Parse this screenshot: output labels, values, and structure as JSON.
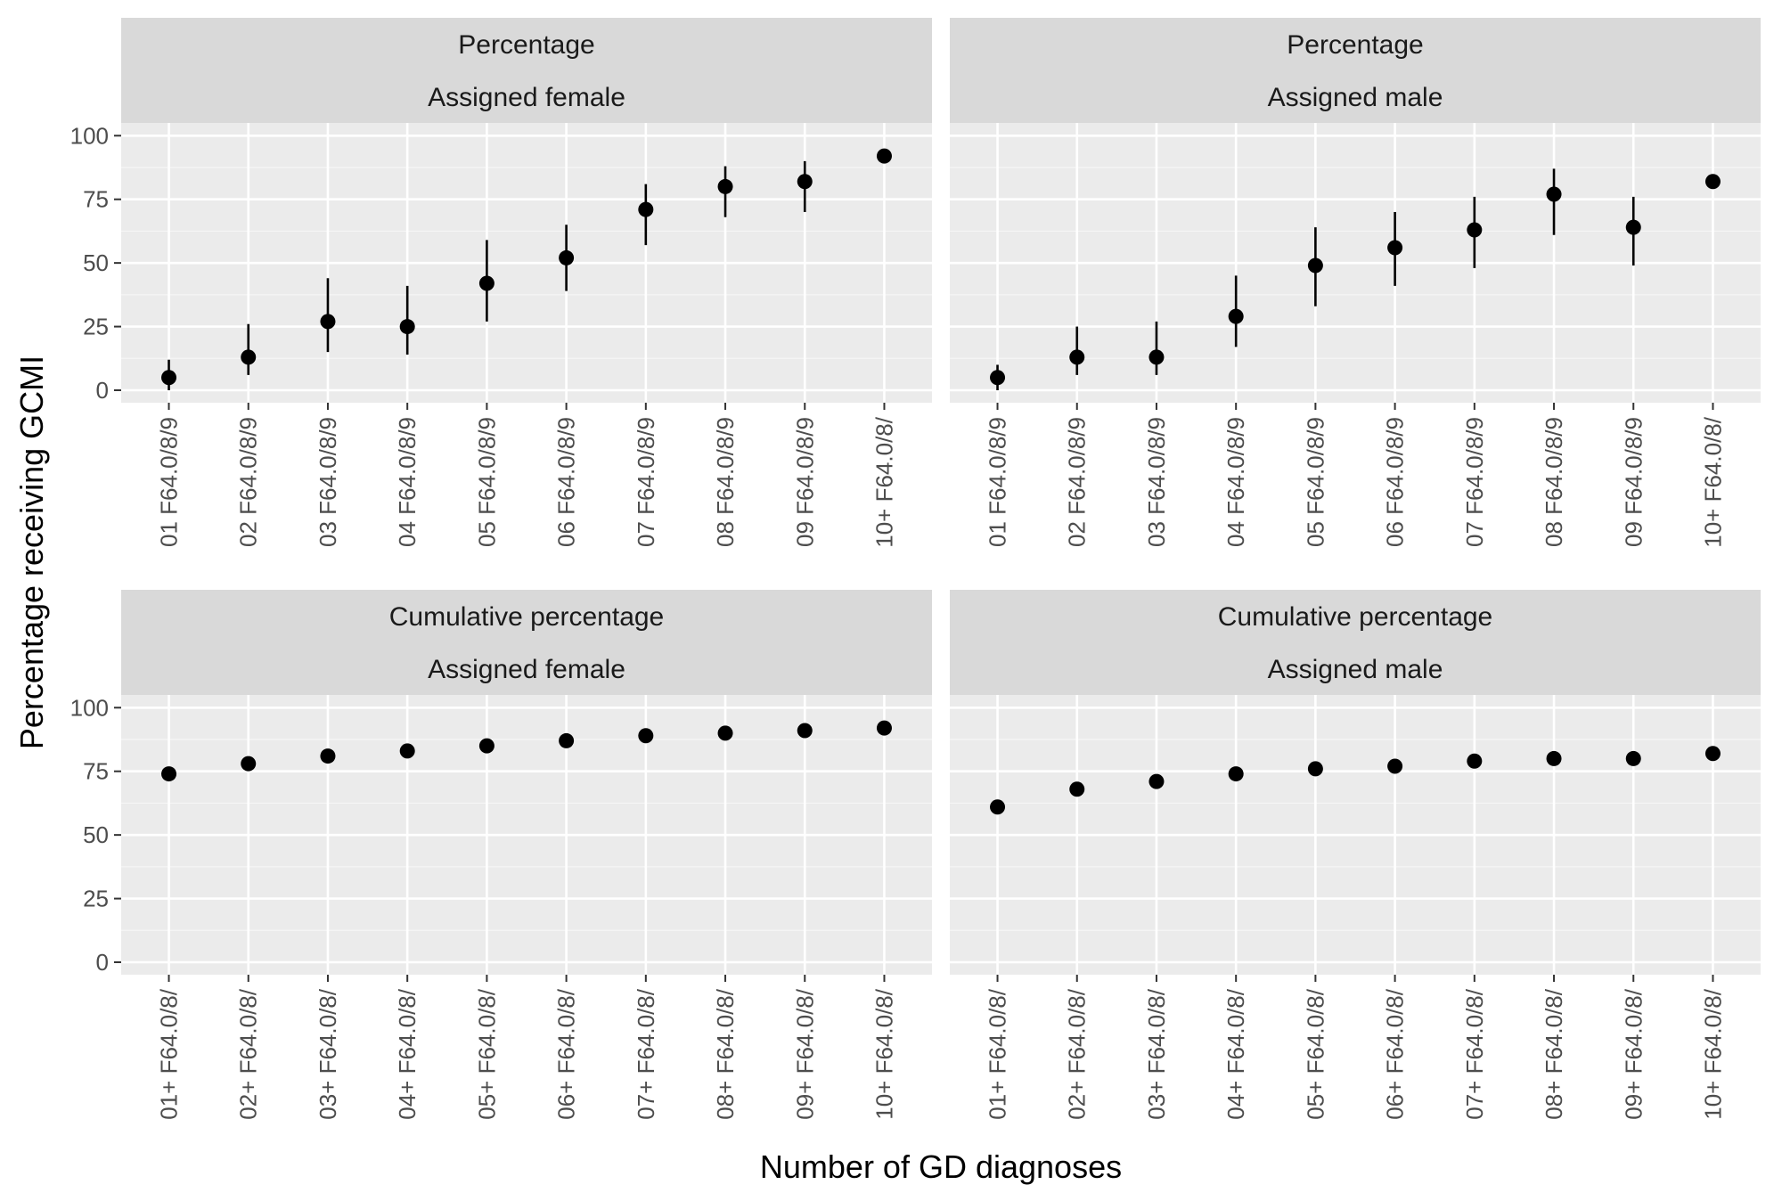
{
  "chart_data": {
    "type": "scatter",
    "xlabel": "Number of GD diagnoses",
    "ylabel": "Percentage receiving GCMI",
    "y_ticks": [
      0,
      25,
      50,
      75,
      100
    ],
    "ylim": [
      0,
      105
    ],
    "grid": true,
    "panels": [
      {
        "strip_top": "Percentage",
        "strip_bottom": "Assigned female",
        "categories": [
          "01 F64.0/8/9",
          "02 F64.0/8/9",
          "03 F64.0/8/9",
          "04 F64.0/8/9",
          "05 F64.0/8/9",
          "06 F64.0/8/9",
          "07 F64.0/8/9",
          "08 F64.0/8/9",
          "09 F64.0/8/9",
          "10+ F64.0/8/"
        ],
        "values": [
          5,
          13,
          27,
          25,
          42,
          52,
          71,
          80,
          82,
          92
        ],
        "lower": [
          0,
          6,
          15,
          14,
          27,
          39,
          57,
          68,
          70,
          null
        ],
        "upper": [
          12,
          26,
          44,
          41,
          59,
          65,
          81,
          88,
          90,
          null
        ]
      },
      {
        "strip_top": "Percentage",
        "strip_bottom": "Assigned male",
        "categories": [
          "01 F64.0/8/9",
          "02 F64.0/8/9",
          "03 F64.0/8/9",
          "04 F64.0/8/9",
          "05 F64.0/8/9",
          "06 F64.0/8/9",
          "07 F64.0/8/9",
          "08 F64.0/8/9",
          "09 F64.0/8/9",
          "10+ F64.0/8/"
        ],
        "values": [
          5,
          13,
          13,
          29,
          49,
          56,
          63,
          77,
          64,
          82
        ],
        "lower": [
          0,
          6,
          6,
          17,
          33,
          41,
          48,
          61,
          49,
          null
        ],
        "upper": [
          10,
          25,
          27,
          45,
          64,
          70,
          76,
          87,
          76,
          null
        ]
      },
      {
        "strip_top": "Cumulative percentage",
        "strip_bottom": "Assigned female",
        "categories": [
          "01+ F64.0/8/",
          "02+ F64.0/8/",
          "03+ F64.0/8/",
          "04+ F64.0/8/",
          "05+ F64.0/8/",
          "06+ F64.0/8/",
          "07+ F64.0/8/",
          "08+ F64.0/8/",
          "09+ F64.0/8/",
          "10+ F64.0/8/"
        ],
        "values": [
          74,
          78,
          81,
          83,
          85,
          87,
          89,
          90,
          91,
          92
        ],
        "lower": [
          null,
          null,
          null,
          null,
          null,
          null,
          null,
          null,
          null,
          null
        ],
        "upper": [
          null,
          null,
          null,
          null,
          null,
          null,
          null,
          null,
          null,
          null
        ]
      },
      {
        "strip_top": "Cumulative percentage",
        "strip_bottom": "Assigned male",
        "categories": [
          "01+ F64.0/8/",
          "02+ F64.0/8/",
          "03+ F64.0/8/",
          "04+ F64.0/8/",
          "05+ F64.0/8/",
          "06+ F64.0/8/",
          "07+ F64.0/8/",
          "08+ F64.0/8/",
          "09+ F64.0/8/",
          "10+ F64.0/8/"
        ],
        "values": [
          61,
          68,
          71,
          74,
          76,
          77,
          79,
          80,
          80,
          82
        ],
        "lower": [
          null,
          null,
          null,
          null,
          null,
          null,
          null,
          null,
          null,
          null
        ],
        "upper": [
          null,
          null,
          null,
          null,
          null,
          null,
          null,
          null,
          null,
          null
        ]
      }
    ],
    "colors": {
      "panel_bg": "#ebebeb",
      "strip_bg": "#d9d9d9",
      "grid_major": "#ffffff",
      "point": "#000000"
    }
  }
}
